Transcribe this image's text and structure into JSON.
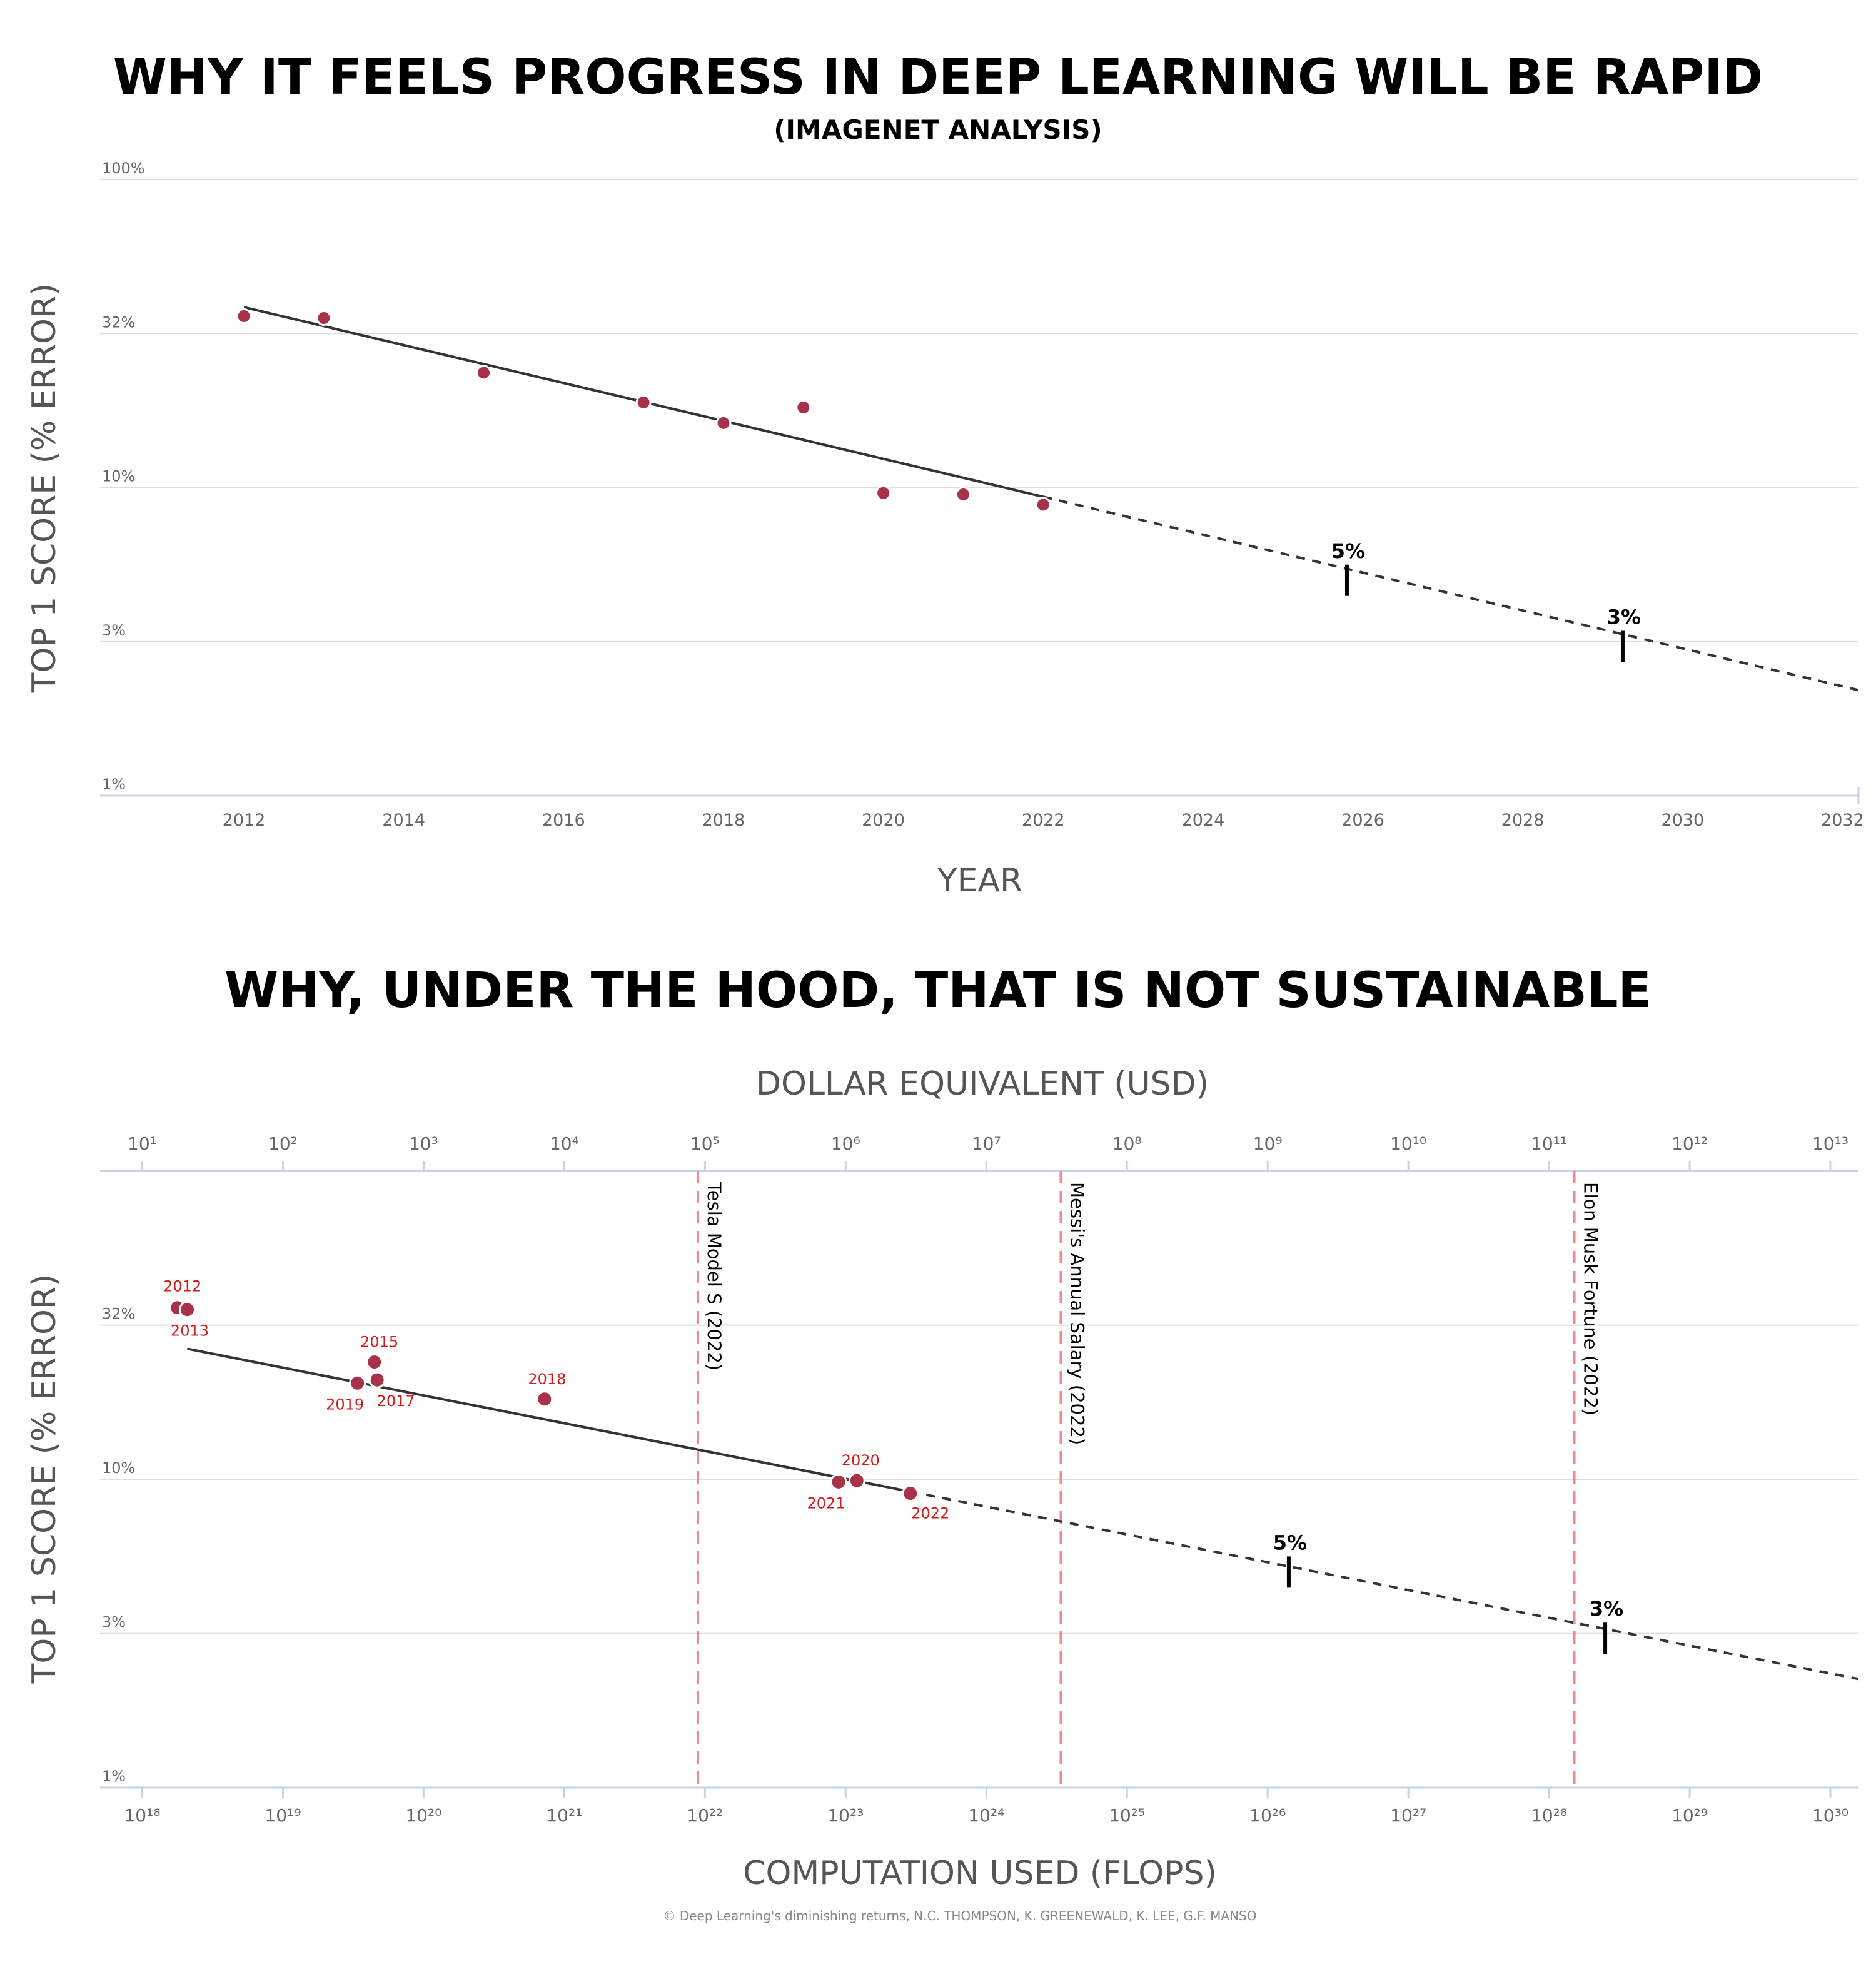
{
  "chart_data": [
    {
      "type": "scatter",
      "title": "WHY IT FEELS PROGRESS IN DEEP LEARNING WILL BE RAPID",
      "subtitle": "(IMAGENET ANALYSIS)",
      "xlabel": "YEAR",
      "ylabel": "TOP 1 SCORE (% ERROR)",
      "yscale": "log",
      "ylim": [
        1,
        100
      ],
      "xlim": [
        2010.2,
        2032.2
      ],
      "xticks": [
        "2012",
        "2014",
        "2016",
        "2018",
        "2020",
        "2022",
        "2024",
        "2026",
        "2028",
        "2030",
        "2032"
      ],
      "yticks": [
        {
          "value": 100,
          "label": "100%"
        },
        {
          "value": 31.6,
          "label": "32%"
        },
        {
          "value": 10,
          "label": "10%"
        },
        {
          "value": 3.16,
          "label": "3%"
        },
        {
          "value": 1,
          "label": "1%"
        }
      ],
      "grid": true,
      "series": [
        {
          "values": [
            {
              "x": 2012,
              "y": 36.0
            },
            {
              "x": 2013,
              "y": 35.5
            },
            {
              "x": 2015,
              "y": 23.6
            },
            {
              "x": 2017,
              "y": 18.9
            },
            {
              "x": 2018,
              "y": 16.2
            },
            {
              "x": 2019,
              "y": 18.2
            },
            {
              "x": 2020,
              "y": 9.6
            },
            {
              "x": 2021,
              "y": 9.5
            },
            {
              "x": 2022,
              "y": 8.8
            }
          ]
        }
      ],
      "trend": {
        "x_start": 2012,
        "y_start": 38.5,
        "x_solid_end": 2022,
        "x_end": 2032.2,
        "y_end": 2.2
      },
      "milestones": [
        {
          "label": "5%",
          "x": 2025.8,
          "y": 5.0
        },
        {
          "label": "3%",
          "x": 2029.25,
          "y": 3.05
        }
      ]
    },
    {
      "type": "scatter",
      "title": "WHY, UNDER THE HOOD, THAT IS NOT SUSTAINABLE",
      "xlabel": "COMPUTATION USED (FLOPS)",
      "x2label": "DOLLAR EQUIVALENT (USD)",
      "ylabel": "TOP 1 SCORE (% ERROR)",
      "xscale": "log",
      "yscale": "log",
      "ylim": [
        1,
        100
      ],
      "xlim_log10_flops": [
        17.7,
        30.2
      ],
      "x2lim_log10_usd": [
        0.7,
        13.2
      ],
      "xticks_log10": [
        18,
        19,
        20,
        21,
        22,
        23,
        24,
        25,
        26,
        27,
        28,
        29,
        30
      ],
      "x2ticks_log10": [
        1,
        2,
        3,
        4,
        5,
        6,
        7,
        8,
        9,
        10,
        11,
        12,
        13
      ],
      "yticks": [
        {
          "value": 31.6,
          "label": "32%"
        },
        {
          "value": 10,
          "label": "10%"
        },
        {
          "value": 3.16,
          "label": "3%"
        },
        {
          "value": 1,
          "label": "1%"
        }
      ],
      "grid": true,
      "series": [
        {
          "values": [
            {
              "label": "2012",
              "x_log10": 18.25,
              "y": 36.0
            },
            {
              "label": "2013",
              "x_log10": 18.32,
              "y": 35.5
            },
            {
              "label": "2015",
              "x_log10": 19.65,
              "y": 24.0
            },
            {
              "label": "2019",
              "x_log10": 19.53,
              "y": 20.5
            },
            {
              "label": "2017",
              "x_log10": 19.67,
              "y": 21.0
            },
            {
              "label": "2018",
              "x_log10": 20.86,
              "y": 18.2
            },
            {
              "label": "2021",
              "x_log10": 22.95,
              "y": 9.8
            },
            {
              "label": "2020",
              "x_log10": 23.08,
              "y": 9.9
            },
            {
              "label": "2022",
              "x_log10": 23.46,
              "y": 9.0
            }
          ]
        }
      ],
      "trend": {
        "x_start_log10": 18.32,
        "y_start": 26.5,
        "x_solid_end_log10": 23.46,
        "x_end_log10": 30.2,
        "y_end": 2.25
      },
      "milestones": [
        {
          "label": "5%",
          "x_log10": 26.15,
          "y": 5.0
        },
        {
          "label": "3%",
          "x_log10": 28.4,
          "y": 3.05
        }
      ],
      "reference_lines": [
        {
          "label": "Tesla Model S (2022)",
          "x_log10": 21.95
        },
        {
          "label": "Messi's Annual Salary (2022)",
          "x_log10": 24.53
        },
        {
          "label": "Elon Musk Fortune (2022)",
          "x_log10": 28.18
        }
      ]
    }
  ],
  "footer": "© Deep Learning's diminishing returns, N.C. THOMPSON, K. GREENEWALD, K. LEE, G.F. MANSO"
}
